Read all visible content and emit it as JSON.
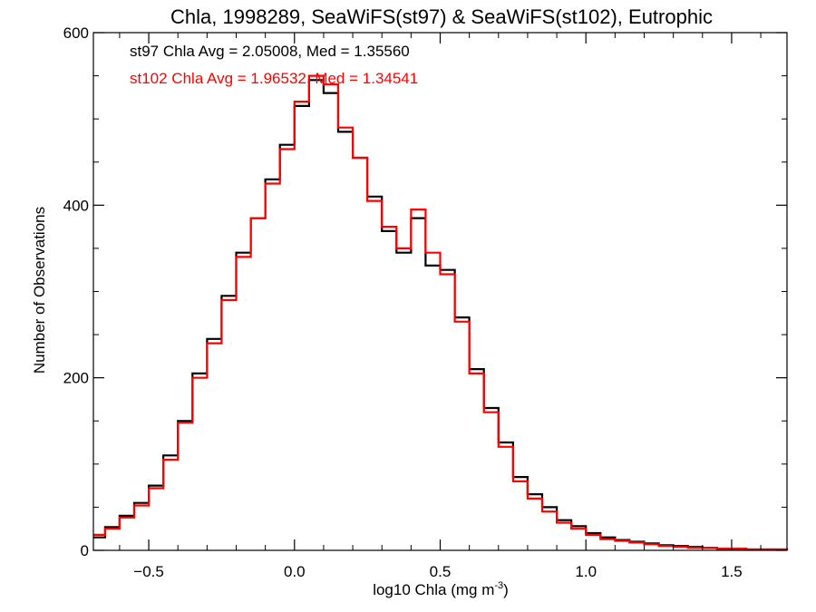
{
  "chart_data": {
    "type": "histogram",
    "title": "Chla, 1998289, SeaWiFS(st97) & SeaWiFS(st102), Eutrophic",
    "xlabel": "log10 Chla (mg m",
    "xlabel_sup": "-3",
    "xlabel_close": ")",
    "ylabel": "Number of Observations",
    "xlim": [
      -0.69,
      1.69
    ],
    "ylim": [
      0,
      600
    ],
    "x_ticks": [
      -0.5,
      0.0,
      0.5,
      1.0,
      1.5
    ],
    "x_tick_labels": [
      "−0.5",
      "0.0",
      "0.5",
      "1.0",
      "1.5"
    ],
    "y_ticks": [
      0,
      200,
      400,
      600
    ],
    "y_tick_labels": [
      "0",
      "200",
      "400",
      "600"
    ],
    "grid": false,
    "annotations": [
      {
        "text": "st97 Chla Avg = 2.05008, Med = 1.35560",
        "color": "#000000"
      },
      {
        "text": "st102 Chla Avg = 1.96532, Med = 1.34541",
        "color": "#ff0000"
      }
    ],
    "series": [
      {
        "color": "#000000",
        "x": [
          -0.69,
          -0.65,
          -0.6,
          -0.55,
          -0.5,
          -0.45,
          -0.4,
          -0.35,
          -0.3,
          -0.25,
          -0.2,
          -0.15,
          -0.1,
          -0.05,
          0.0,
          0.05,
          0.1,
          0.15,
          0.2,
          0.25,
          0.3,
          0.35,
          0.4,
          0.45,
          0.5,
          0.55,
          0.6,
          0.65,
          0.7,
          0.75,
          0.8,
          0.85,
          0.9,
          0.95,
          1.0,
          1.05,
          1.1,
          1.15,
          1.2,
          1.25,
          1.3,
          1.35,
          1.4,
          1.45,
          1.5,
          1.55,
          1.6,
          1.65,
          1.69
        ],
        "y": [
          15,
          27,
          40,
          55,
          75,
          110,
          150,
          205,
          245,
          295,
          345,
          385,
          430,
          470,
          515,
          545,
          530,
          485,
          455,
          410,
          370,
          345,
          385,
          330,
          325,
          270,
          210,
          165,
          125,
          85,
          65,
          50,
          35,
          28,
          20,
          15,
          12,
          10,
          8,
          6,
          5,
          4,
          3,
          2,
          2,
          1,
          1,
          1,
          0
        ]
      },
      {
        "color": "#ff0000",
        "x": [
          -0.69,
          -0.65,
          -0.6,
          -0.55,
          -0.5,
          -0.45,
          -0.4,
          -0.35,
          -0.3,
          -0.25,
          -0.2,
          -0.15,
          -0.1,
          -0.05,
          0.0,
          0.05,
          0.1,
          0.15,
          0.2,
          0.25,
          0.3,
          0.35,
          0.4,
          0.45,
          0.5,
          0.55,
          0.6,
          0.65,
          0.7,
          0.75,
          0.8,
          0.85,
          0.9,
          0.95,
          1.0,
          1.05,
          1.1,
          1.15,
          1.2,
          1.25,
          1.3,
          1.35,
          1.4,
          1.45,
          1.5,
          1.55,
          1.6,
          1.65,
          1.69
        ],
        "y": [
          18,
          25,
          38,
          52,
          72,
          105,
          148,
          200,
          240,
          290,
          340,
          385,
          425,
          465,
          520,
          550,
          540,
          490,
          455,
          405,
          375,
          350,
          395,
          345,
          320,
          265,
          205,
          160,
          120,
          80,
          60,
          45,
          32,
          25,
          18,
          13,
          11,
          9,
          7,
          5,
          4,
          3,
          3,
          2,
          2,
          1,
          1,
          1,
          0
        ]
      }
    ]
  }
}
